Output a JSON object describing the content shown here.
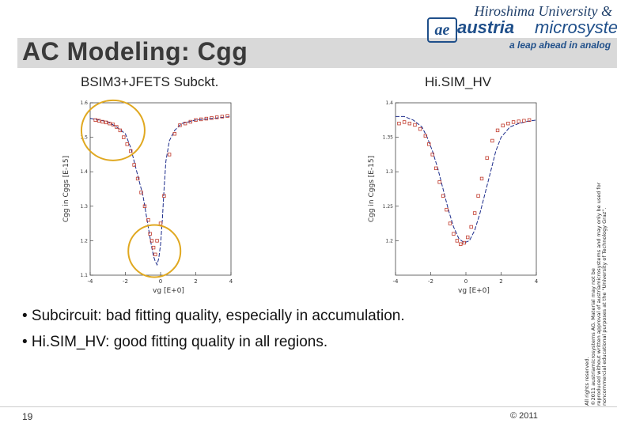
{
  "header": {
    "title": "AC Modeling: Cgg",
    "institution": "Hiroshima University &",
    "brand_logo_mark": "ae",
    "brand_part1": "austria",
    "brand_part2": "microsystems",
    "tagline": "a leap ahead in analog"
  },
  "subtitles": {
    "left": "BSIM3+JFETS Subckt.",
    "right": "Hi.SIM_HV"
  },
  "bullets": [
    "• Subcircuit: bad fitting quality, especially in accumulation.",
    "• Hi.SIM_HV: good fitting quality in all regions."
  ],
  "footer": {
    "page_number": "19",
    "copyright": "© 2011"
  },
  "side_legal": {
    "line1": "All rights reserved.",
    "line2": "©2011 austriamicrosystems AG. Material may not be",
    "line3": "reproduced without written approval of austriamicrosystems and may only be used for",
    "line4": "noncommercial educational purposes at the \"University of Technology Graz\"."
  },
  "colors": {
    "accent": "#1f4f8a",
    "title_bar": "#d9d9d9",
    "data_markers": "#c0392b",
    "model_curve": "#1a2a8a",
    "highlight_circle": "#e0a820"
  },
  "chart_data": [
    {
      "type": "scatter",
      "title": "",
      "xlabel": "vg [E+0]",
      "ylabel": "Cgg in Cggs [E-15]",
      "xlim": [
        -4,
        4
      ],
      "ylim": [
        1.1,
        1.6
      ],
      "xticks": [
        "-4",
        "-2",
        "0",
        "2",
        "4"
      ],
      "yticks": [
        "1.1",
        "1.2",
        "1.3",
        "1.4",
        "1.5",
        "1.6"
      ],
      "series": [
        {
          "kind": "measured",
          "x": [
            -3.7,
            -3.5,
            -3.3,
            -3.1,
            -2.9,
            -2.7,
            -2.5,
            -2.3,
            -2.1,
            -1.9,
            -1.7,
            -1.5,
            -1.3,
            -1.1,
            -0.9,
            -0.7,
            -0.6,
            -0.5,
            -0.4,
            -0.3,
            -0.2,
            0.0,
            0.2,
            0.5,
            0.8,
            1.1,
            1.4,
            1.7,
            2.0,
            2.3,
            2.6,
            2.9,
            3.2,
            3.5,
            3.8
          ],
          "y": [
            1.55,
            1.548,
            1.545,
            1.543,
            1.54,
            1.537,
            1.53,
            1.52,
            1.5,
            1.48,
            1.46,
            1.42,
            1.38,
            1.34,
            1.3,
            1.26,
            1.22,
            1.2,
            1.18,
            1.16,
            1.2,
            1.25,
            1.33,
            1.45,
            1.51,
            1.535,
            1.54,
            1.545,
            1.55,
            1.552,
            1.554,
            1.556,
            1.558,
            1.56,
            1.562
          ]
        },
        {
          "kind": "model",
          "x": [
            -4.0,
            -3.5,
            -3.0,
            -2.5,
            -2.0,
            -1.7,
            -1.4,
            -1.2,
            -1.0,
            -0.8,
            -0.6,
            -0.5,
            -0.4,
            -0.3,
            -0.2,
            -0.1,
            0.0,
            0.1,
            0.2,
            0.3,
            0.5,
            0.8,
            1.2,
            2.0,
            3.0,
            4.0
          ],
          "y": [
            1.555,
            1.55,
            1.545,
            1.53,
            1.51,
            1.47,
            1.41,
            1.37,
            1.33,
            1.27,
            1.21,
            1.18,
            1.155,
            1.14,
            1.13,
            1.15,
            1.19,
            1.26,
            1.35,
            1.43,
            1.49,
            1.52,
            1.54,
            1.55,
            1.555,
            1.56
          ]
        }
      ]
    },
    {
      "type": "scatter",
      "title": "",
      "xlabel": "vg [E+0]",
      "ylabel": "Cgg in Cggs [E-15]",
      "xlim": [
        -4,
        4
      ],
      "ylim": [
        1.15,
        1.4
      ],
      "xticks": [
        "-4",
        "-2",
        "0",
        "2",
        "4"
      ],
      "yticks": [
        "1.2",
        "1.25",
        "1.3",
        "1.35",
        "1.4"
      ],
      "series": [
        {
          "kind": "measured",
          "x": [
            -3.8,
            -3.5,
            -3.2,
            -2.9,
            -2.6,
            -2.3,
            -2.1,
            -1.9,
            -1.7,
            -1.5,
            -1.3,
            -1.1,
            -0.9,
            -0.7,
            -0.5,
            -0.3,
            -0.1,
            0.1,
            0.3,
            0.5,
            0.7,
            0.9,
            1.2,
            1.5,
            1.8,
            2.1,
            2.4,
            2.7,
            3.0,
            3.3,
            3.6
          ],
          "y": [
            1.37,
            1.372,
            1.37,
            1.368,
            1.362,
            1.352,
            1.34,
            1.325,
            1.305,
            1.285,
            1.265,
            1.245,
            1.225,
            1.21,
            1.2,
            1.195,
            1.197,
            1.205,
            1.22,
            1.24,
            1.265,
            1.29,
            1.32,
            1.345,
            1.36,
            1.367,
            1.37,
            1.372,
            1.373,
            1.374,
            1.375
          ]
        },
        {
          "kind": "model",
          "x": [
            -4.0,
            -3.5,
            -3.0,
            -2.5,
            -2.2,
            -1.9,
            -1.6,
            -1.3,
            -1.0,
            -0.7,
            -0.4,
            -0.1,
            0.2,
            0.5,
            0.8,
            1.1,
            1.4,
            1.7,
            2.0,
            2.5,
            3.0,
            3.5,
            4.0
          ],
          "y": [
            1.38,
            1.38,
            1.375,
            1.365,
            1.35,
            1.33,
            1.305,
            1.275,
            1.245,
            1.22,
            1.203,
            1.197,
            1.2,
            1.215,
            1.24,
            1.27,
            1.3,
            1.33,
            1.35,
            1.365,
            1.37,
            1.373,
            1.375
          ]
        }
      ]
    }
  ]
}
